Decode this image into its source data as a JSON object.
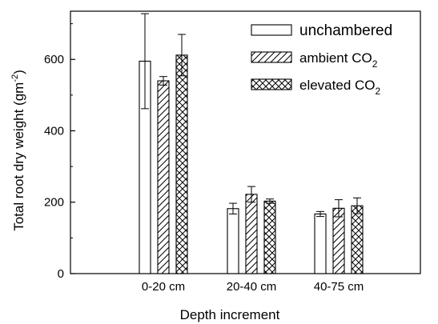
{
  "chart_data": {
    "type": "bar",
    "title": "",
    "xlabel": "Depth increment",
    "ylabel": {
      "text": "Total root dry weight (gm",
      "sup": "-2",
      "close": ")"
    },
    "categories": [
      "0-20 cm",
      "20-40 cm",
      "40-75 cm"
    ],
    "ylim": [
      0,
      735
    ],
    "yticks": [
      0,
      200,
      400,
      600
    ],
    "grid": false,
    "legend_position": "top-right",
    "series": [
      {
        "name": {
          "text": "unchambered",
          "sub": ""
        },
        "pattern": "none",
        "values": [
          595,
          182,
          167
        ],
        "errors": [
          133,
          15,
          7
        ]
      },
      {
        "name": {
          "text": "ambient CO",
          "sub": "2"
        },
        "pattern": "diagonal-hatch",
        "values": [
          540,
          222,
          183
        ],
        "errors": [
          12,
          22,
          24
        ]
      },
      {
        "name": {
          "text": "elevated CO",
          "sub": "2"
        },
        "pattern": "crosshatch",
        "values": [
          612,
          203,
          190
        ],
        "errors": [
          58,
          6,
          22
        ]
      }
    ]
  }
}
